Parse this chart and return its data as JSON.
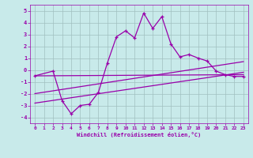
{
  "xlabel": "Windchill (Refroidissement éolien,°C)",
  "xlim": [
    -0.5,
    23.5
  ],
  "ylim": [
    -4.5,
    5.5
  ],
  "yticks": [
    -4,
    -3,
    -2,
    -1,
    0,
    1,
    2,
    3,
    4,
    5
  ],
  "xticks": [
    0,
    1,
    2,
    3,
    4,
    5,
    6,
    7,
    8,
    9,
    10,
    11,
    12,
    13,
    14,
    15,
    16,
    17,
    18,
    19,
    20,
    21,
    22,
    23
  ],
  "bg_color": "#c8eaea",
  "line_color": "#9900aa",
  "grid_color": "#a0c0c0",
  "series1_x": [
    0,
    2,
    3,
    4,
    5,
    6,
    7,
    8,
    9,
    10,
    11,
    12,
    13,
    14,
    15,
    16,
    17,
    18,
    19,
    20,
    21,
    22,
    23
  ],
  "series1_y": [
    -0.5,
    -0.1,
    -2.6,
    -3.7,
    -3.0,
    -2.9,
    -1.9,
    0.6,
    2.8,
    3.3,
    2.7,
    4.8,
    3.5,
    4.5,
    2.2,
    1.1,
    1.3,
    1.0,
    0.75,
    -0.1,
    -0.4,
    -0.55,
    -0.55
  ],
  "line2_x": [
    0,
    23
  ],
  "line2_y": [
    -0.5,
    -0.4
  ],
  "line3_x": [
    0,
    23
  ],
  "line3_y": [
    -2.0,
    0.7
  ],
  "line4_x": [
    0,
    23
  ],
  "line4_y": [
    -2.8,
    -0.2
  ]
}
